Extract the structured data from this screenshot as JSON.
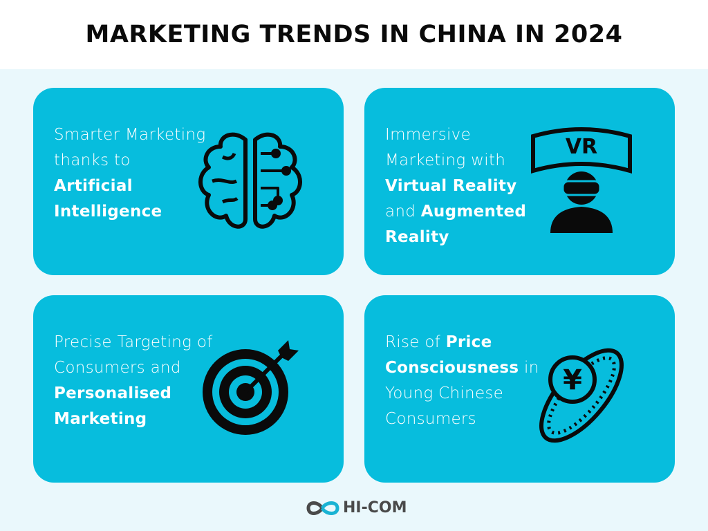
{
  "title": "MARKETING TRENDS IN CHINA IN 2024",
  "colors": {
    "card": "#07bddd",
    "background": "#eaf8fc",
    "text": "#ffffff",
    "icon": "#0a0a0a"
  },
  "cards": [
    {
      "icon": "brain-circuit-icon",
      "segments": [
        {
          "text": "Smarter Marketing thanks to ",
          "bold": false
        },
        {
          "text": "Artificial Intelligence",
          "bold": true
        }
      ]
    },
    {
      "icon": "vr-headset-icon",
      "segments": [
        {
          "text": "Immersive Marketing with ",
          "bold": false
        },
        {
          "text": "Virtual Reality",
          "bold": true
        },
        {
          "text": " and ",
          "bold": false
        },
        {
          "text": "Augmented Reality",
          "bold": true
        }
      ],
      "icon_label": "VR"
    },
    {
      "icon": "target-arrow-icon",
      "segments": [
        {
          "text": "Precise Targeting of Consumers and ",
          "bold": false
        },
        {
          "text": "Personalised Marketing",
          "bold": true
        }
      ]
    },
    {
      "icon": "yuan-coin-icon",
      "segments": [
        {
          "text": "Rise of ",
          "bold": false
        },
        {
          "text": "Price Consciousness",
          "bold": true
        },
        {
          "text": " in Young Chinese Consumers",
          "bold": false
        }
      ],
      "icon_label": "¥"
    }
  ],
  "footer": {
    "logo_text": "HI-COM",
    "logo_icon": "infinity-icon"
  }
}
